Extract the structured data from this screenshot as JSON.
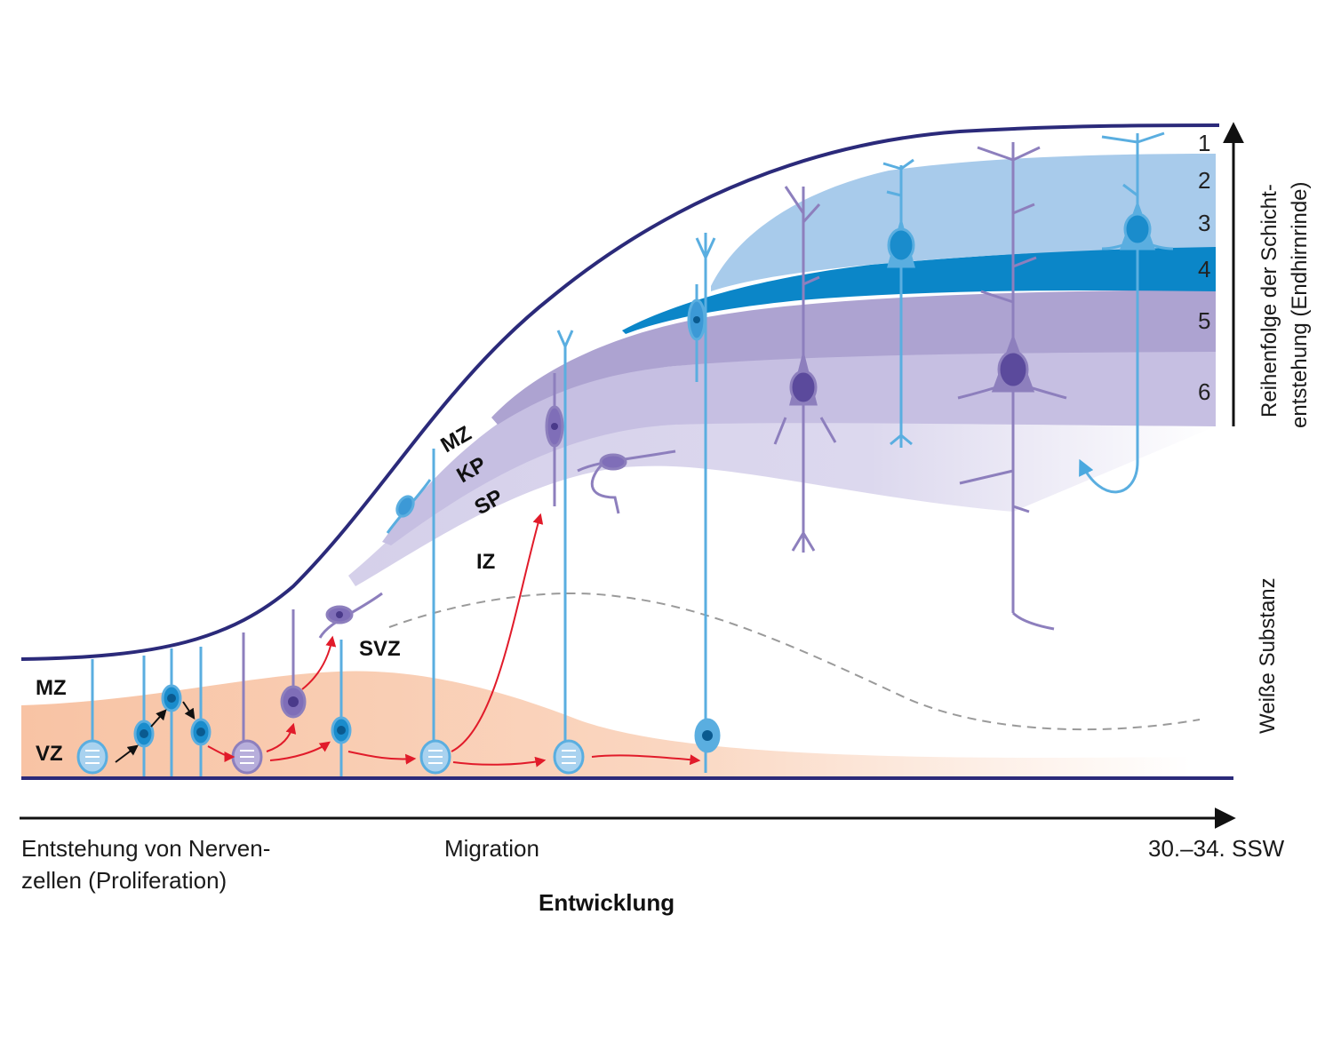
{
  "zones": {
    "mz_left": "MZ",
    "vz": "VZ",
    "mz_diag": "MZ",
    "kp": "KP",
    "sp": "SP",
    "iz": "IZ",
    "svz": "SVZ"
  },
  "layers": [
    "1",
    "2",
    "3",
    "4",
    "5",
    "6"
  ],
  "right_axis": {
    "line1": "Reihenfolge der Schicht-",
    "line2": "entstehung (Endhirnrinde)",
    "white_matter": "Weiße Substanz"
  },
  "bottom_axis": {
    "left_line1": "Entstehung von Nerven-",
    "left_line2": "zellen (Proliferation)",
    "middle": "Migration",
    "right": "30.–34. SSW",
    "title": "Entwicklung"
  },
  "colors": {
    "outline": "#2b2a7a",
    "vz_fill": "#f7c9ad",
    "layer2_3": "#a8cbeb",
    "layer4": "#0b86c8",
    "layer5": "#ada2d0",
    "layer6": "#c4bde0",
    "sp": "#dad5ec",
    "cell_blue": "#5aaee0",
    "cell_purple": "#8d7fbd",
    "arrow_red": "#e11b2a"
  }
}
